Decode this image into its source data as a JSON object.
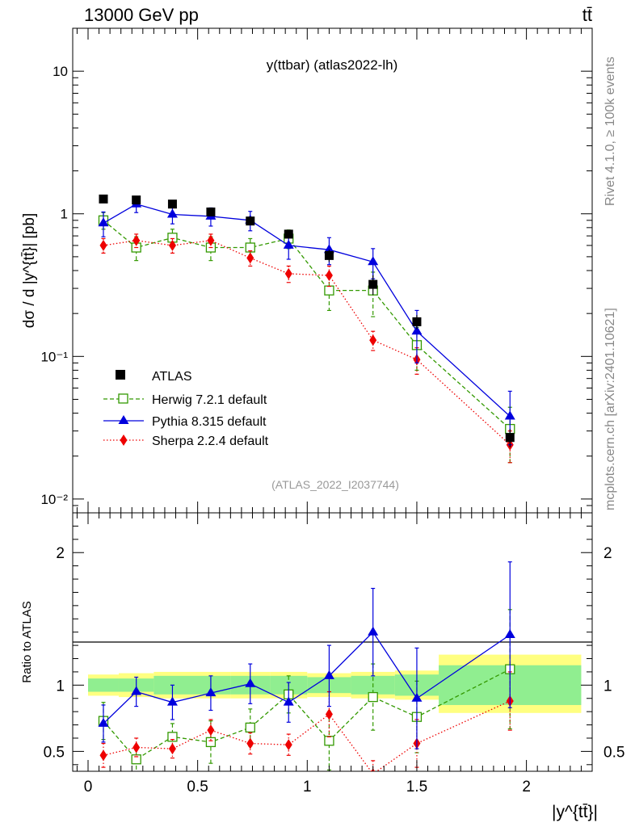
{
  "header": {
    "left": "13000 GeV pp",
    "right": "tt̄"
  },
  "side_labels": {
    "rivet": "Rivet 4.1.0, ≥ 100k events",
    "mcplots": "mcplots.cern.ch [arXiv:2401.10621]"
  },
  "chart_data": {
    "type": "line",
    "title": "y(ttbar) (atlas2022-lh)",
    "watermark": "(ATLAS_2022_I2037744)",
    "xlabel": "|y^{tt̄}|",
    "ylabel": "dσ / d |y^{tt̄}| [pb]",
    "ratio_ylabel": "Ratio to ATLAS",
    "xlim": [
      -0.07,
      2.3
    ],
    "ylim": [
      0.008,
      20
    ],
    "yscale": "log",
    "ratio_ylim": [
      0.35,
      2.3
    ],
    "x_ticks": [
      "0",
      "0.5",
      "1",
      "1.5",
      "2"
    ],
    "y_ticks": [
      "10",
      "1",
      "10⁻¹",
      "10⁻²"
    ],
    "ratio_ticks": [
      "2",
      "1",
      "0.5"
    ],
    "legend": [
      "ATLAS",
      "Herwig 7.2.1 default",
      "Pythia 8.315 default",
      "Sherpa 2.2.4 default"
    ],
    "bins": [
      [
        0,
        0.14
      ],
      [
        0.14,
        0.3
      ],
      [
        0.3,
        0.47
      ],
      [
        0.47,
        0.65
      ],
      [
        0.65,
        0.83
      ],
      [
        0.83,
        1.0
      ],
      [
        1.0,
        1.2
      ],
      [
        1.2,
        1.4
      ],
      [
        1.4,
        1.6
      ],
      [
        1.6,
        2.25
      ]
    ],
    "x": [
      0.07,
      0.22,
      0.385,
      0.56,
      0.74,
      0.915,
      1.1,
      1.3,
      1.5,
      1.925
    ],
    "series": [
      {
        "name": "ATLAS",
        "color": "#000000",
        "values": [
          1.27,
          1.25,
          1.17,
          1.03,
          0.89,
          0.72,
          0.51,
          0.32,
          0.175,
          0.027
        ]
      },
      {
        "name": "Herwig 7.2.1 default",
        "color": "#339900",
        "values": [
          0.9,
          0.58,
          0.68,
          0.58,
          0.58,
          0.67,
          0.29,
          0.29,
          0.12,
          0.031
        ],
        "err_low": [
          0.12,
          0.11,
          0.1,
          0.11,
          0.09,
          0.1,
          0.08,
          0.1,
          0.04,
          0.013
        ],
        "err_high": [
          0.12,
          0.11,
          0.1,
          0.11,
          0.09,
          0.1,
          0.08,
          0.1,
          0.04,
          0.013
        ],
        "ratio": [
          0.73,
          0.44,
          0.61,
          0.57,
          0.68,
          0.93,
          0.58,
          0.91,
          0.76,
          1.12
        ],
        "ratio_err_low": [
          0.14,
          0.1,
          0.1,
          0.16,
          0.14,
          0.14,
          0.22,
          0.25,
          0.27,
          0.45
        ],
        "ratio_err_high": [
          0.14,
          0.1,
          0.1,
          0.16,
          0.14,
          0.14,
          0.22,
          0.25,
          0.27,
          0.45
        ]
      },
      {
        "name": "Pythia 8.315 default",
        "color": "#0000dd",
        "values": [
          0.86,
          1.17,
          0.99,
          0.96,
          0.9,
          0.6,
          0.56,
          0.46,
          0.15,
          0.038
        ],
        "err_low": [
          0.17,
          0.15,
          0.14,
          0.14,
          0.14,
          0.12,
          0.12,
          0.11,
          0.06,
          0.014
        ],
        "err_high": [
          0.17,
          0.15,
          0.14,
          0.14,
          0.14,
          0.12,
          0.12,
          0.11,
          0.06,
          0.019
        ],
        "ratio": [
          0.71,
          0.95,
          0.87,
          0.94,
          1.01,
          0.87,
          1.07,
          1.4,
          0.9,
          1.38
        ],
        "ratio_err_low": [
          0.14,
          0.11,
          0.13,
          0.13,
          0.15,
          0.15,
          0.23,
          0.33,
          0.38,
          0.55
        ],
        "ratio_err_high": [
          0.14,
          0.11,
          0.13,
          0.13,
          0.15,
          0.15,
          0.23,
          0.33,
          0.38,
          0.55
        ]
      },
      {
        "name": "Sherpa 2.2.4 default",
        "color": "#ee0000",
        "values": [
          0.6,
          0.65,
          0.6,
          0.65,
          0.49,
          0.38,
          0.37,
          0.13,
          0.095,
          0.024
        ],
        "err_low": [
          0.07,
          0.07,
          0.07,
          0.07,
          0.06,
          0.05,
          0.06,
          0.02,
          0.02,
          0.006
        ],
        "err_high": [
          0.07,
          0.07,
          0.07,
          0.07,
          0.06,
          0.05,
          0.06,
          0.02,
          0.02,
          0.006
        ],
        "ratio": [
          0.47,
          0.53,
          0.52,
          0.66,
          0.56,
          0.55,
          0.78,
          0.33,
          0.56,
          0.88
        ],
        "ratio_err_low": [
          0.09,
          0.07,
          0.07,
          0.08,
          0.08,
          0.08,
          0.17,
          0.1,
          0.18,
          0.22
        ],
        "ratio_err_high": [
          0.09,
          0.07,
          0.07,
          0.08,
          0.08,
          0.08,
          0.17,
          0.1,
          0.18,
          0.22
        ]
      }
    ],
    "data_err": [
      0.05,
      0.06,
      0.06,
      0.06,
      0.05,
      0.05,
      0.05,
      0.05,
      0.02,
      0.004
    ],
    "band_inner": [
      0.95,
      0.95,
      0.93,
      0.93,
      0.93,
      0.93,
      0.94,
      0.93,
      0.92,
      0.85
    ],
    "band_inner_high": [
      1.05,
      1.05,
      1.07,
      1.07,
      1.07,
      1.07,
      1.06,
      1.07,
      1.08,
      1.15
    ],
    "band_outer": [
      0.92,
      0.91,
      0.9,
      0.9,
      0.9,
      0.9,
      0.91,
      0.9,
      0.89,
      0.79
    ],
    "band_outer_high": [
      1.08,
      1.09,
      1.1,
      1.1,
      1.1,
      1.1,
      1.09,
      1.1,
      1.11,
      1.23
    ]
  }
}
